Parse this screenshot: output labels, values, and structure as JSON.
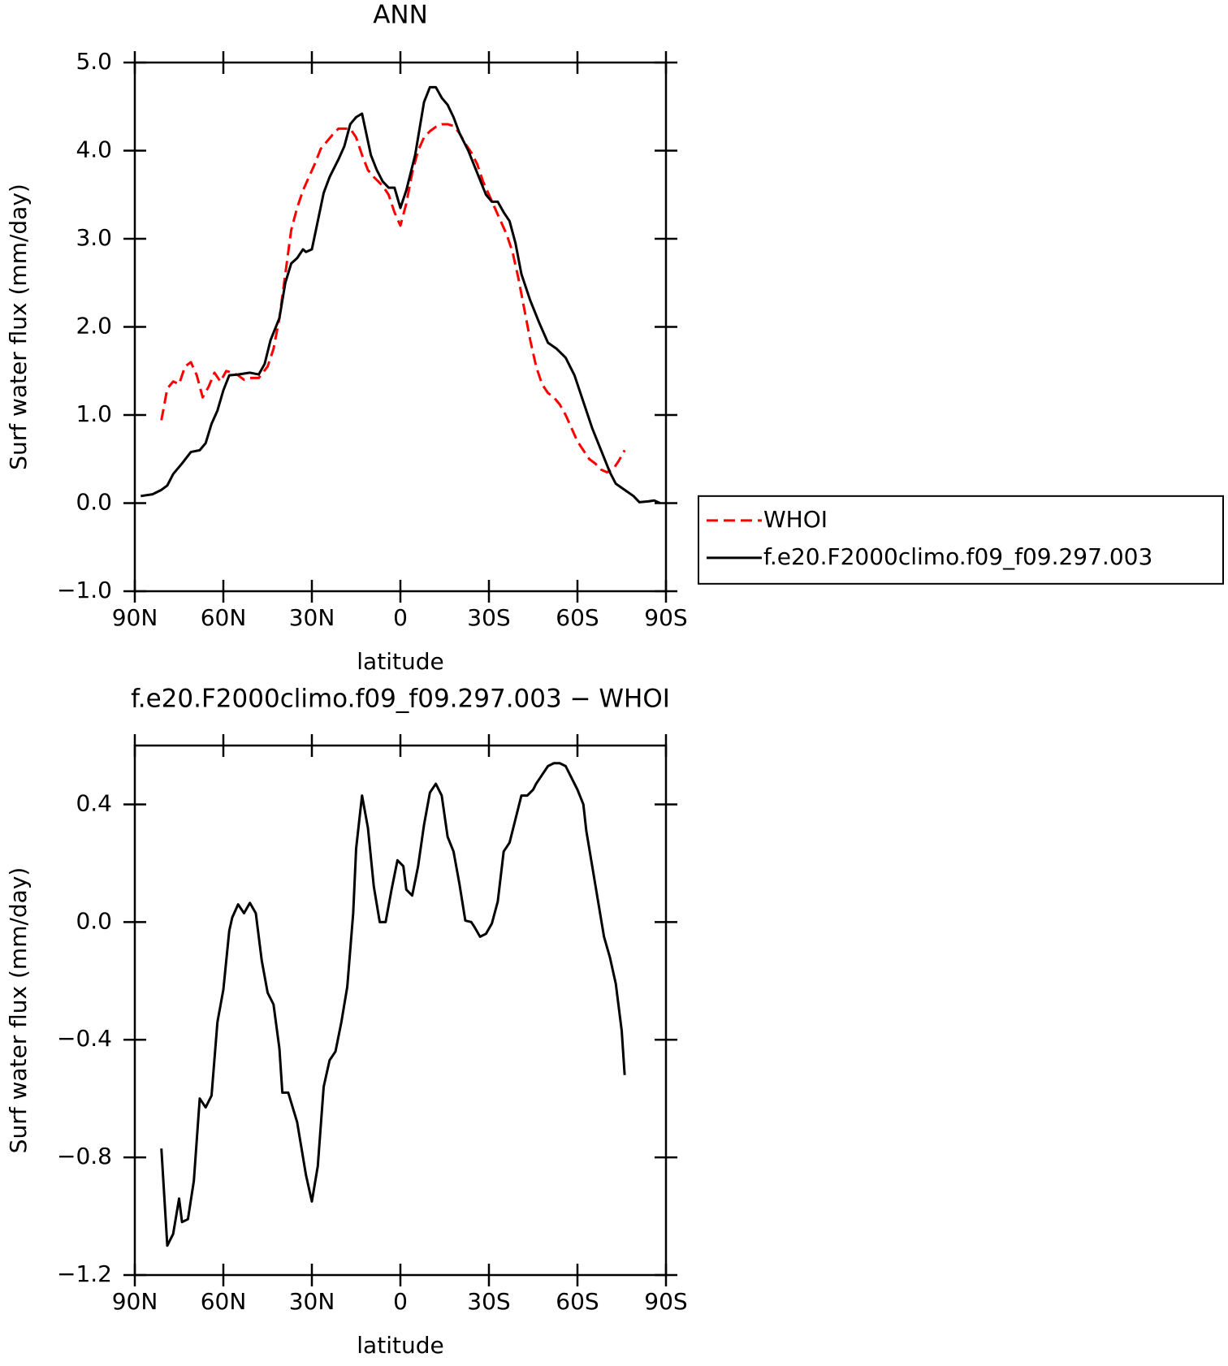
{
  "chart_data": [
    {
      "type": "line",
      "title": "ANN",
      "x_label": "latitude",
      "y_label": "Surf water flux (mm/day)",
      "xlim": [
        90,
        -90
      ],
      "xticks": [
        {
          "value": 90,
          "label": "90N"
        },
        {
          "value": 60,
          "label": "60N"
        },
        {
          "value": 30,
          "label": "30N"
        },
        0,
        {
          "value": -30,
          "label": "30S"
        },
        {
          "value": -60,
          "label": "60S"
        },
        {
          "value": -90,
          "label": "90S"
        }
      ],
      "ylim": [
        -1,
        5
      ],
      "yticks": [
        {
          "value": -1,
          "label": "−1.0"
        },
        {
          "value": 0,
          "label": "0.0"
        },
        {
          "value": 1,
          "label": "1.0"
        },
        {
          "value": 2,
          "label": "2.0"
        },
        {
          "value": 3,
          "label": "3.0"
        },
        {
          "value": 4,
          "label": "4.0"
        },
        {
          "value": 5,
          "label": "5.0"
        }
      ],
      "legend": "right",
      "series": [
        {
          "name": "WHOI",
          "color": "#ff0000",
          "dashed": true,
          "x": [
            81,
            79,
            77,
            75,
            73,
            71,
            69,
            67,
            65,
            63,
            61,
            59,
            57,
            55,
            53,
            51,
            48,
            45,
            43,
            41,
            39,
            37,
            35,
            33,
            31,
            29,
            27,
            25,
            23,
            21,
            19,
            17,
            15,
            13,
            11,
            9,
            6,
            4,
            2,
            0,
            -2,
            -4,
            -6,
            -8,
            -10,
            -12,
            -14,
            -16,
            -18,
            -20,
            -22,
            -24,
            -26,
            -28,
            -30,
            -32,
            -34,
            -36,
            -38,
            -40,
            -42,
            -44,
            -46,
            -48,
            -50,
            -52,
            -54,
            -56,
            -58,
            -60,
            -62,
            -64,
            -66,
            -68,
            -70,
            -72,
            -74,
            -76
          ],
          "values": [
            0.94,
            1.3,
            1.38,
            1.35,
            1.55,
            1.6,
            1.45,
            1.2,
            1.32,
            1.48,
            1.38,
            1.5,
            1.48,
            1.45,
            1.4,
            1.42,
            1.42,
            1.55,
            1.75,
            2.1,
            2.6,
            3.1,
            3.35,
            3.55,
            3.7,
            3.85,
            4.02,
            4.1,
            4.18,
            4.25,
            4.25,
            4.25,
            4.15,
            3.95,
            3.78,
            3.7,
            3.6,
            3.5,
            3.3,
            3.15,
            3.4,
            3.75,
            4.0,
            4.15,
            4.22,
            4.27,
            4.3,
            4.3,
            4.28,
            4.2,
            4.08,
            3.98,
            3.85,
            3.65,
            3.5,
            3.35,
            3.2,
            3.05,
            2.85,
            2.55,
            2.2,
            1.85,
            1.55,
            1.35,
            1.25,
            1.2,
            1.12,
            1.0,
            0.85,
            0.7,
            0.6,
            0.5,
            0.45,
            0.38,
            0.35,
            0.38,
            0.48,
            0.6
          ]
        },
        {
          "name": "f.e20.F2000climo.f09_f09.297.003",
          "color": "#000000",
          "dashed": false,
          "x": [
            88,
            84,
            81,
            79,
            77,
            74,
            71,
            68,
            66,
            64,
            62,
            60,
            58,
            55,
            51,
            48,
            46,
            44,
            41,
            39,
            37,
            35,
            33,
            32,
            30,
            28,
            26,
            24,
            21,
            19,
            17,
            15,
            13,
            10,
            8,
            6,
            4,
            2,
            0,
            -2,
            -5,
            -8,
            -10,
            -12,
            -14,
            -16,
            -18,
            -20,
            -23,
            -26,
            -29,
            -31,
            -33,
            -35,
            -37,
            -39,
            -41,
            -44,
            -47,
            -50,
            -53,
            -56,
            -59,
            -62,
            -65,
            -68,
            -71,
            -73,
            -76,
            -79,
            -81,
            -84,
            -86,
            -88
          ],
          "values": [
            0.08,
            0.1,
            0.15,
            0.2,
            0.33,
            0.45,
            0.58,
            0.6,
            0.68,
            0.9,
            1.05,
            1.28,
            1.45,
            1.46,
            1.48,
            1.46,
            1.58,
            1.85,
            2.1,
            2.5,
            2.72,
            2.78,
            2.88,
            2.85,
            2.88,
            3.2,
            3.52,
            3.7,
            3.9,
            4.05,
            4.3,
            4.38,
            4.42,
            3.95,
            3.78,
            3.65,
            3.58,
            3.58,
            3.35,
            3.55,
            3.95,
            4.55,
            4.72,
            4.72,
            4.6,
            4.52,
            4.38,
            4.2,
            4.0,
            3.75,
            3.5,
            3.42,
            3.42,
            3.3,
            3.2,
            2.95,
            2.6,
            2.3,
            2.05,
            1.82,
            1.75,
            1.65,
            1.45,
            1.15,
            0.85,
            0.6,
            0.35,
            0.22,
            0.15,
            0.08,
            0.01,
            0.02,
            0.03,
            0.0
          ]
        }
      ]
    },
    {
      "type": "line",
      "title": "f.e20.F2000climo.f09_f09.297.003 − WHOI",
      "x_label": "latitude",
      "y_label": "Surf water flux (mm/day)",
      "xlim": [
        90,
        -90
      ],
      "xticks": [
        {
          "value": 90,
          "label": "90N"
        },
        {
          "value": 60,
          "label": "60N"
        },
        {
          "value": 30,
          "label": "30N"
        },
        0,
        {
          "value": -30,
          "label": "30S"
        },
        {
          "value": -60,
          "label": "60S"
        },
        {
          "value": -90,
          "label": "90S"
        }
      ],
      "ylim": [
        -1.2,
        0.6
      ],
      "yticks": [
        {
          "value": -1.2,
          "label": "−1.2"
        },
        {
          "value": -0.8,
          "label": "−0.8"
        },
        {
          "value": -0.4,
          "label": "−0.4"
        },
        {
          "value": 0,
          "label": "0.0"
        },
        0.4
      ],
      "series": [
        {
          "color": "#000000",
          "dashed": false,
          "x": [
            81,
            79,
            77,
            75,
            74,
            72,
            70,
            68,
            66,
            64,
            62,
            60,
            58,
            57,
            55,
            53,
            51,
            49,
            47,
            45,
            43,
            41,
            40,
            38,
            35,
            34,
            32,
            30,
            28,
            26,
            24,
            22,
            20,
            18,
            16,
            15,
            13,
            11,
            9,
            7,
            5,
            3,
            1,
            -1,
            -2,
            -4,
            -6,
            -8,
            -10,
            -12,
            -14,
            -16,
            -18,
            -20,
            -22,
            -24,
            -25,
            -27,
            -29,
            -31,
            -33,
            -35,
            -37,
            -39,
            -41,
            -43,
            -45,
            -46,
            -48,
            -50,
            -52,
            -54,
            -56,
            -58,
            -60,
            -62,
            -63,
            -65,
            -67,
            -69,
            -71,
            -73,
            -75,
            -76
          ],
          "values": [
            -0.77,
            -1.1,
            -1.06,
            -0.94,
            -1.02,
            -1.01,
            -0.88,
            -0.6,
            -0.63,
            -0.59,
            -0.34,
            -0.23,
            -0.03,
            0.015,
            0.06,
            0.03,
            0.065,
            0.03,
            -0.13,
            -0.24,
            -0.28,
            -0.43,
            -0.58,
            -0.58,
            -0.68,
            -0.74,
            -0.86,
            -0.95,
            -0.83,
            -0.56,
            -0.47,
            -0.44,
            -0.34,
            -0.22,
            0.03,
            0.25,
            0.43,
            0.32,
            0.12,
            0.0,
            0.0,
            0.11,
            0.21,
            0.19,
            0.11,
            0.09,
            0.19,
            0.33,
            0.44,
            0.47,
            0.43,
            0.29,
            0.24,
            0.13,
            0.005,
            0.0,
            -0.015,
            -0.05,
            -0.04,
            -0.005,
            0.07,
            0.24,
            0.27,
            0.35,
            0.43,
            0.43,
            0.45,
            0.47,
            0.5,
            0.53,
            0.54,
            0.54,
            0.53,
            0.49,
            0.45,
            0.4,
            0.31,
            0.19,
            0.07,
            -0.05,
            -0.12,
            -0.21,
            -0.37,
            -0.52
          ]
        }
      ]
    }
  ]
}
